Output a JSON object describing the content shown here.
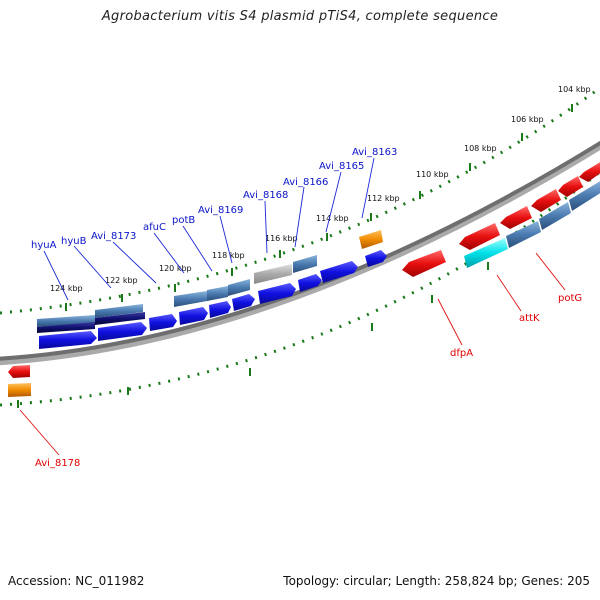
{
  "title": "Agrobacterium vitis S4 plasmid pTiS4, complete sequence",
  "accession": "Accession: NC_011982",
  "summary": "Topology: circular; Length: 258,824 bp; Genes: 205",
  "colors": {
    "forward_cds": "#1010e0",
    "reverse_cds": "#e81010",
    "steel_gene": "#4a7ab0",
    "dark_navy": "#101070",
    "gray_gene": "#aaaaaa",
    "orange_gene": "#f08c00",
    "cyan_gene": "#00e0e8",
    "backbone": "#777777",
    "tick": "#1a7a1a"
  },
  "scale_labels": [
    "104 kbp",
    "106 kbp",
    "108 kbp",
    "110 kbp",
    "112 kbp",
    "114 kbp",
    "116 kbp",
    "118 kbp",
    "120 kbp",
    "122 kbp",
    "124 kbp"
  ],
  "forward_gene_labels": [
    "hyuA",
    "hyuB",
    "Avi_8173",
    "afuC",
    "potB",
    "Avi_8169",
    "Avi_8168",
    "Avi_8166",
    "Avi_8165",
    "Avi_8163"
  ],
  "reverse_gene_labels": [
    "Avi_8178",
    "dfpA",
    "attK",
    "potG"
  ]
}
